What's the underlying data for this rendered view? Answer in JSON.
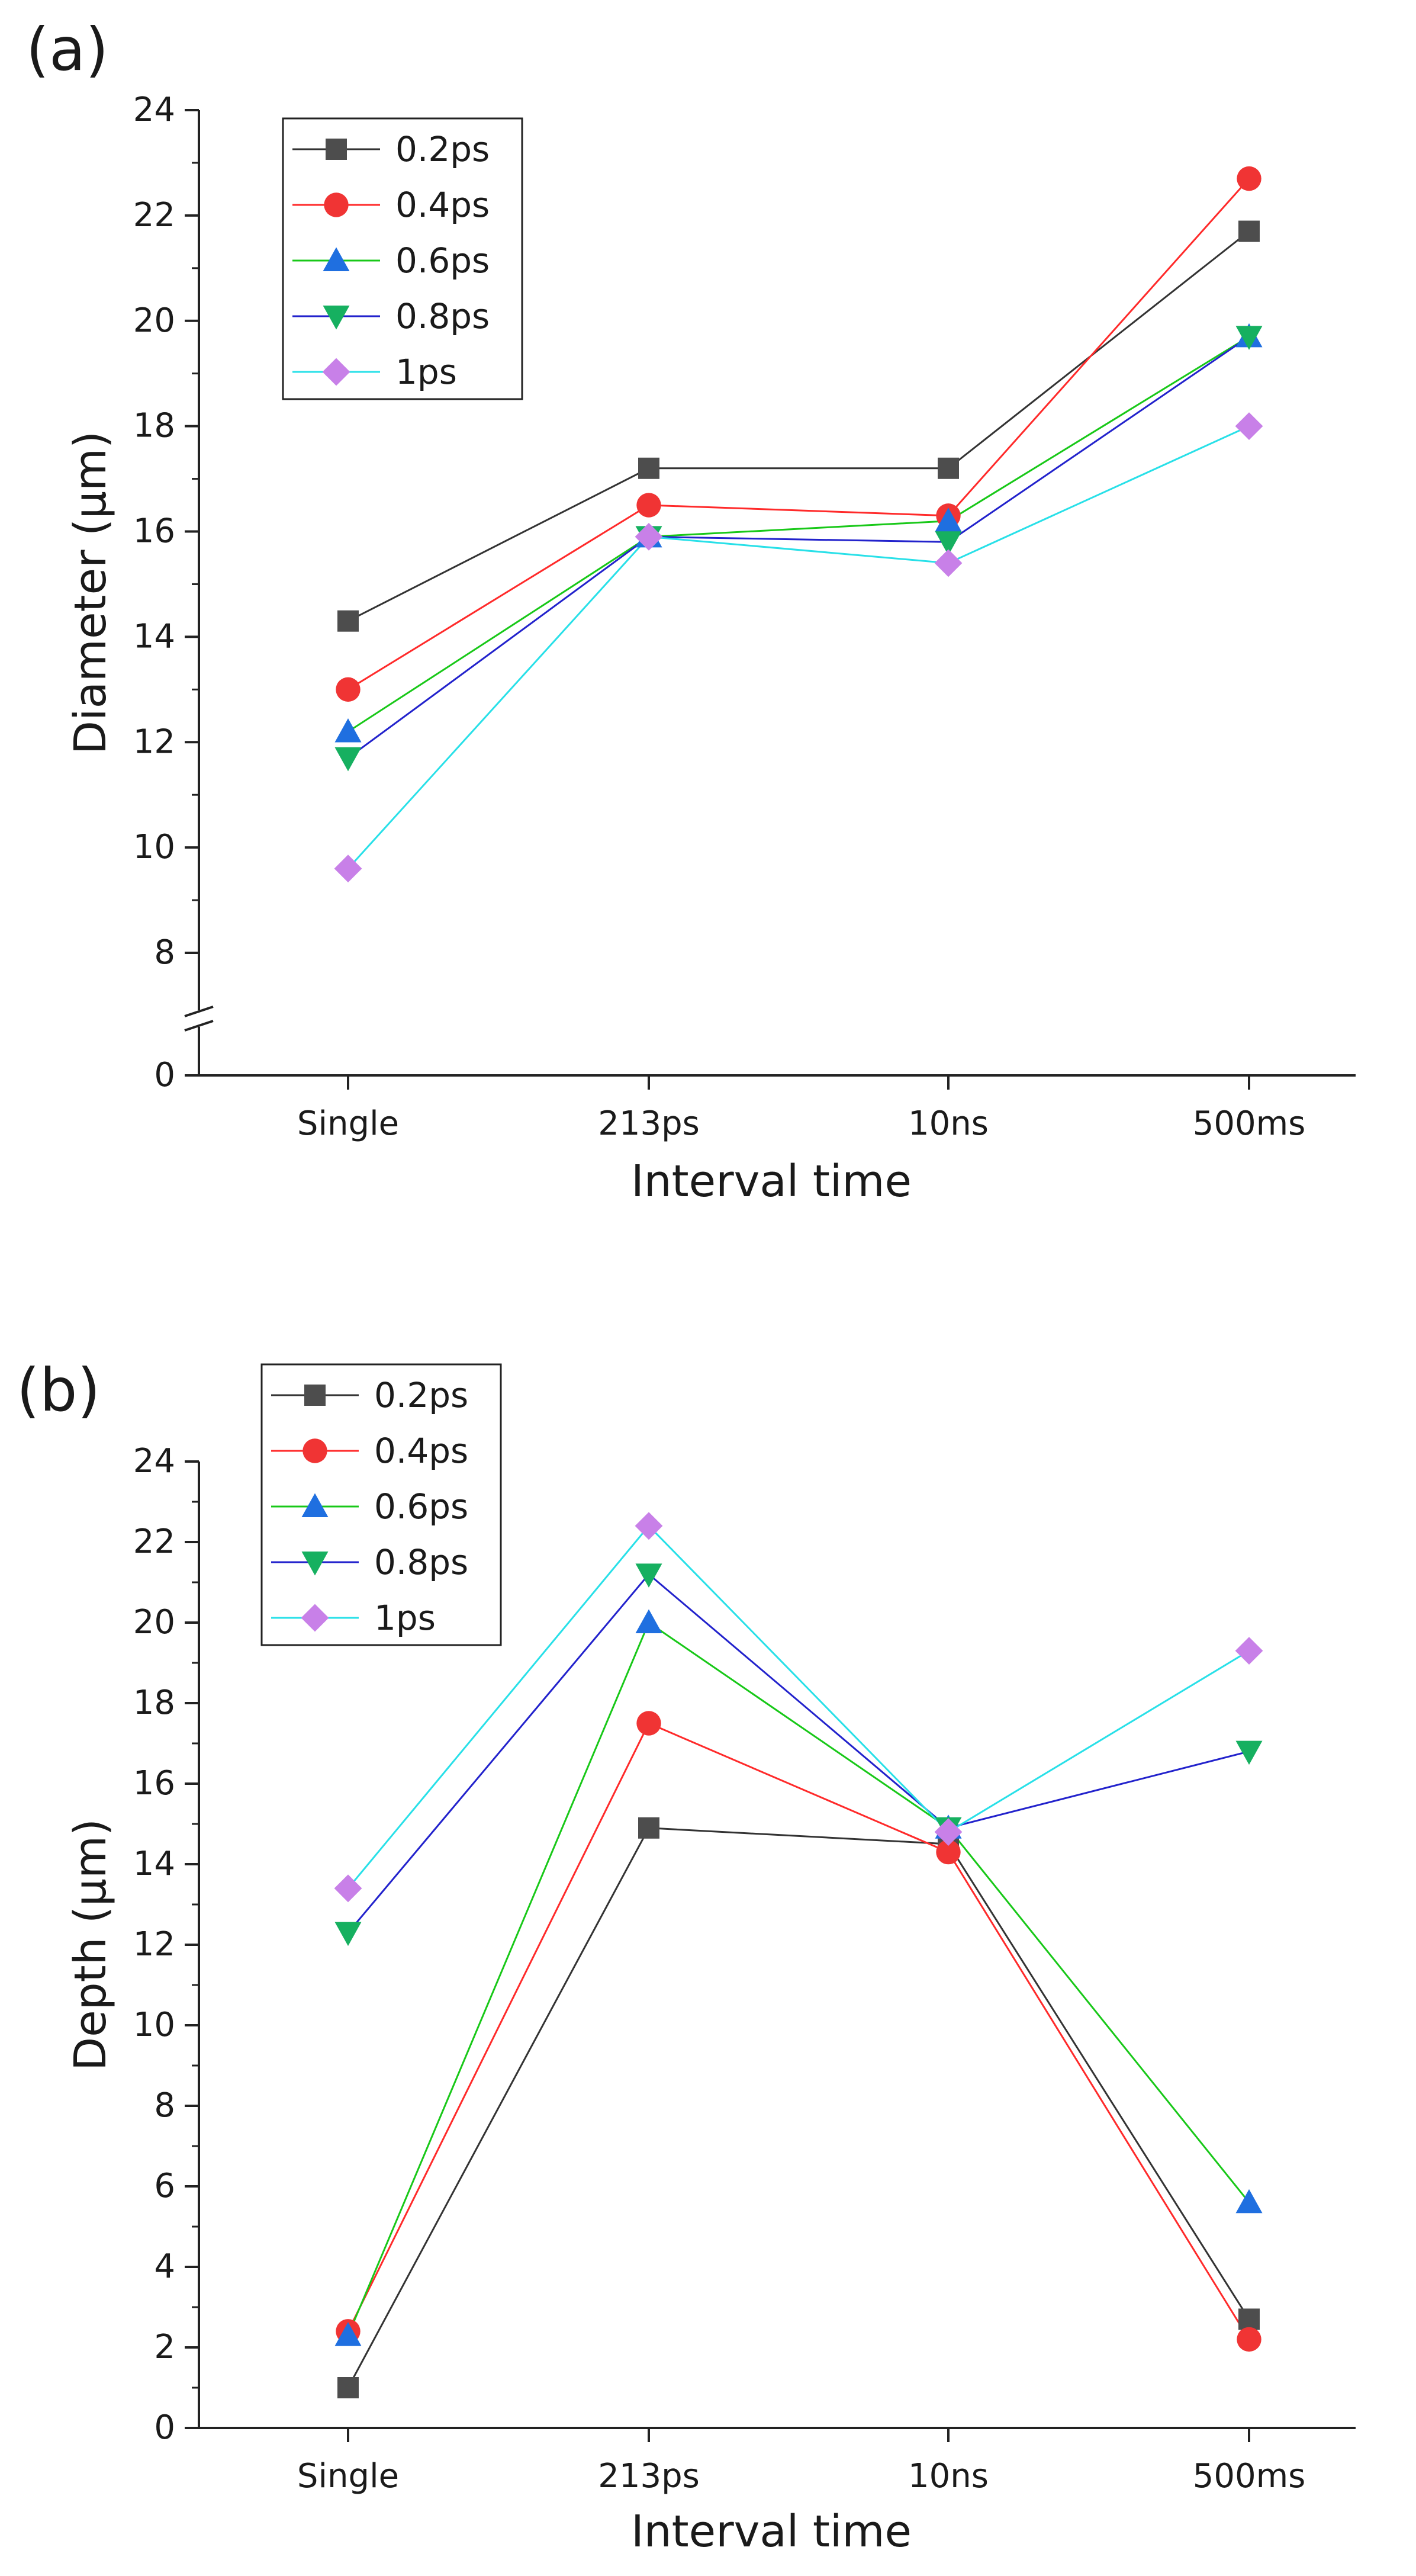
{
  "chart_data": [
    {
      "panel_label": "(a)",
      "type": "line",
      "xlabel": "Interval time",
      "ylabel": "Diameter (μm)",
      "categories": [
        "Single",
        "213ps",
        "10ns",
        "500ms"
      ],
      "y_ticks": [
        "0",
        "8",
        "10",
        "12",
        "14",
        "16",
        "18",
        "20",
        "22",
        "24"
      ],
      "ylim": [
        7,
        24
      ],
      "axis_break": true,
      "legend_position": "top-left",
      "series": [
        {
          "name": "0.2ps",
          "values": [
            14.3,
            17.2,
            17.2,
            21.7
          ],
          "color": "#333333",
          "marker": "square"
        },
        {
          "name": "0.4ps",
          "values": [
            13.0,
            16.5,
            16.3,
            22.7
          ],
          "color": "#ff2a2a",
          "marker": "circle"
        },
        {
          "name": "0.6ps",
          "values": [
            12.2,
            15.9,
            16.2,
            19.7
          ],
          "color": "#18c818",
          "marker": "triangle-up"
        },
        {
          "name": "0.8ps",
          "values": [
            11.7,
            15.9,
            15.8,
            19.7
          ],
          "color": "#2222cc",
          "marker": "triangle-down"
        },
        {
          "name": "1ps",
          "values": [
            9.6,
            15.9,
            15.4,
            18.0
          ],
          "color": "#28e0e8",
          "marker": "diamond"
        }
      ]
    },
    {
      "panel_label": "(b)",
      "type": "line",
      "xlabel": "Interval time",
      "ylabel": "Depth (μm)",
      "categories": [
        "Single",
        "213ps",
        "10ns",
        "500ms"
      ],
      "y_ticks": [
        "0",
        "2",
        "4",
        "6",
        "8",
        "10",
        "12",
        "14",
        "16",
        "18",
        "20",
        "22",
        "24"
      ],
      "ylim": [
        0,
        24
      ],
      "axis_break": false,
      "legend_position": "top-left",
      "series": [
        {
          "name": "0.2ps",
          "values": [
            1.0,
            14.9,
            14.5,
            2.7
          ],
          "color": "#333333",
          "marker": "square"
        },
        {
          "name": "0.4ps",
          "values": [
            2.4,
            17.5,
            14.3,
            2.2
          ],
          "color": "#ff2a2a",
          "marker": "circle"
        },
        {
          "name": "0.6ps",
          "values": [
            2.3,
            20.0,
            14.9,
            5.6
          ],
          "color": "#18c818",
          "marker": "triangle-up"
        },
        {
          "name": "0.8ps",
          "values": [
            12.3,
            21.2,
            14.9,
            16.8
          ],
          "color": "#2222cc",
          "marker": "triangle-down"
        },
        {
          "name": "1ps",
          "values": [
            13.4,
            22.4,
            14.8,
            19.3
          ],
          "color": "#28e0e8",
          "marker": "diamond"
        }
      ]
    }
  ],
  "marker_colors": {
    "square": "#4d4d4d",
    "circle": "#f03434",
    "triangle-up": "#1f6fe0",
    "triangle-down": "#16b060",
    "diamond": "#c880e8"
  }
}
